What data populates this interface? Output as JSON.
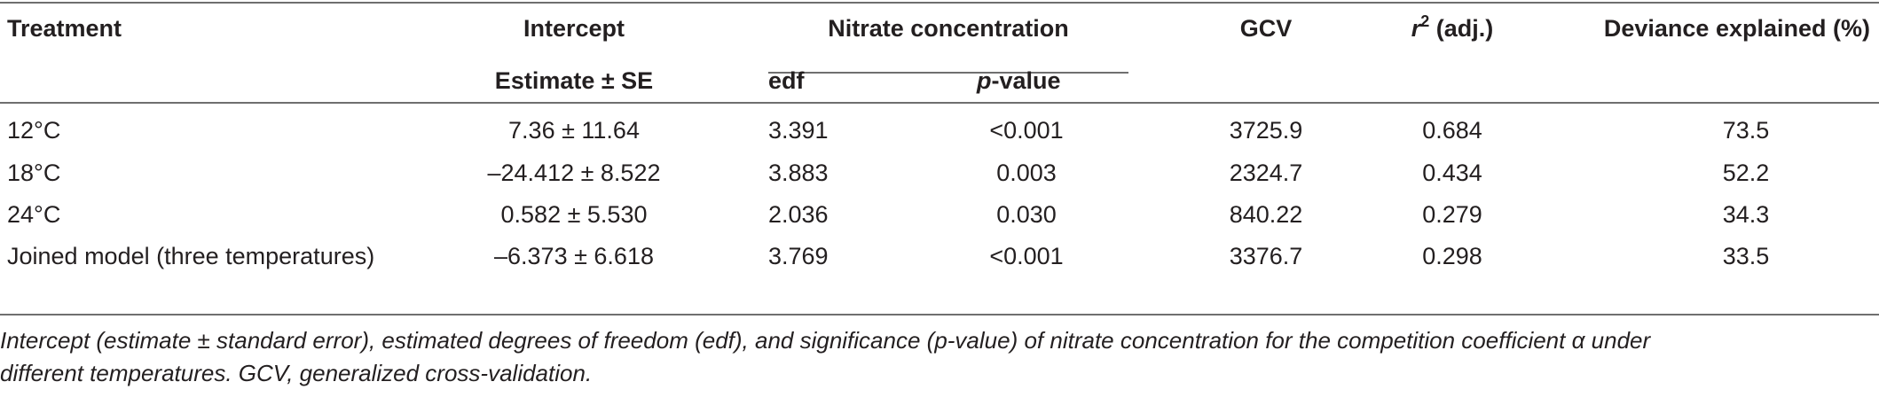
{
  "table": {
    "headers": {
      "treatment": "Treatment",
      "intercept": "Intercept",
      "intercept_sub": "Estimate ± SE",
      "nitrate": "Nitrate concentration",
      "edf": "edf",
      "pvalue_p": "p",
      "pvalue_rest": "-value",
      "gcv": "GCV",
      "r2_r": "r",
      "r2_sup": "2",
      "r2_rest": " (adj.)",
      "deviance": "Deviance explained (%)"
    },
    "rows": [
      {
        "treatment": "12°C",
        "intercept": "7.36 ± 11.64",
        "edf": "3.391",
        "pvalue": "<0.001",
        "gcv": "3725.9",
        "r2": "0.684",
        "deviance": "73.5"
      },
      {
        "treatment": "18°C",
        "intercept": "–24.412 ± 8.522",
        "edf": "3.883",
        "pvalue": "0.003",
        "gcv": "2324.7",
        "r2": "0.434",
        "deviance": "52.2"
      },
      {
        "treatment": "24°C",
        "intercept": "0.582 ± 5.530",
        "edf": "2.036",
        "pvalue": "0.030",
        "gcv": "840.22",
        "r2": "0.279",
        "deviance": "34.3"
      },
      {
        "treatment": "Joined model (three temperatures)",
        "intercept": "–6.373 ± 6.618",
        "edf": "3.769",
        "pvalue": "<0.001",
        "gcv": "3376.7",
        "r2": "0.298",
        "deviance": "33.5"
      }
    ],
    "caption_line1": "Intercept (estimate ± standard error), estimated degrees of freedom (edf), and significance (p-value) of nitrate concentration for the competition coefficient α under",
    "caption_line2": "different temperatures. GCV, generalized cross-validation."
  }
}
